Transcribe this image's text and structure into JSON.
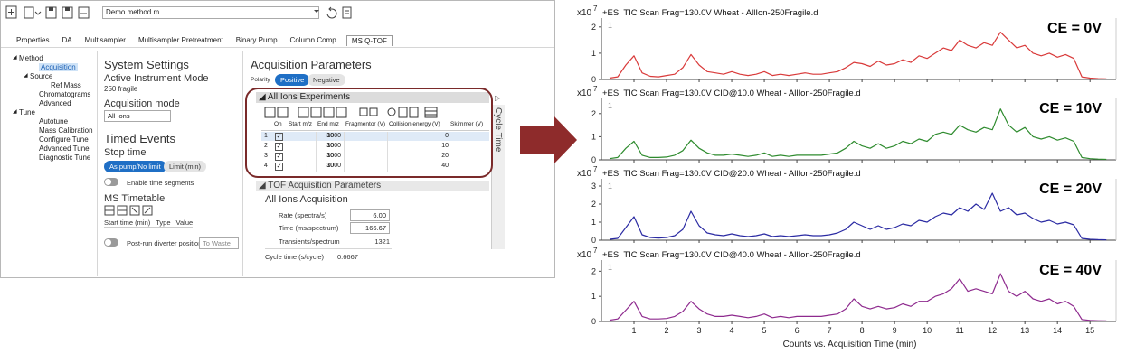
{
  "app": {
    "file_name": "Demo method.m",
    "tabs": [
      "Properties",
      "DA",
      "Multisampler",
      "Multisampler Pretreatment",
      "Binary Pump",
      "Column Comp.",
      "MS Q-TOF"
    ],
    "active_tab": "MS Q-TOF",
    "tree": [
      {
        "label": "Method",
        "children": [
          {
            "label": "Acquisition"
          },
          {
            "label": "Source",
            "children": [
              {
                "label": "Ref Mass"
              }
            ]
          },
          {
            "label": "Chromatograms"
          },
          {
            "label": "Advanced"
          }
        ]
      },
      {
        "label": "Tune",
        "children": [
          {
            "label": "Autotune"
          },
          {
            "label": "Mass Calibration"
          },
          {
            "label": "Configure Tune"
          },
          {
            "label": "Advanced Tune"
          },
          {
            "label": "Diagnostic Tune"
          }
        ]
      }
    ],
    "selected_tree_item": "Acquisition",
    "system": {
      "title": "System Settings",
      "mode_label": "Active Instrument Mode",
      "mode_value": "250 fragile",
      "acq_mode_label": "Acquisition mode",
      "acq_mode_value": "All Ions",
      "timed_events": "Timed Events",
      "stop_time": "Stop time",
      "btn_no_limit": "As pump/No limit",
      "btn_limit": "Limit (min)",
      "enable_segments": "Enable time segments",
      "timetable": "MS Timetable",
      "timetable_headers": [
        "Start time (min)",
        "Type",
        "Value"
      ],
      "post_run": "Post-run diverter position",
      "post_run_value": "To Waste"
    },
    "acquisition": {
      "title": "Acquisition Parameters",
      "polarity": "Polarity",
      "positive": "Positive",
      "negative": "Negative",
      "experiments_title": "All Ions Experiments",
      "headers": [
        "On",
        "Start m/z",
        "End m/z",
        "Fragmentor (V)",
        "Collision energy (V)",
        "Skimmer (V)"
      ],
      "rows": [
        {
          "index": 1,
          "start": 30,
          "end": 1000,
          "ce": 0
        },
        {
          "index": 2,
          "start": 30,
          "end": 1000,
          "ce": 10
        },
        {
          "index": 3,
          "start": 30,
          "end": 1000,
          "ce": 20
        },
        {
          "index": 4,
          "start": 30,
          "end": 1000,
          "ce": 40
        }
      ],
      "cycle_time_tab": "Cycle Time",
      "tof_title": "TOF Acquisition Parameters",
      "tof_mode": "All Ions Acquisition",
      "rate_label": "Rate (spectra/s)",
      "rate": "6.00",
      "time_label": "Time (ms/spectrum)",
      "time": "166.67",
      "transients_label": "Transients/spectrum",
      "transients": 1321,
      "cycle_label": "Cycle time (s/cycle)",
      "cycle": "0.6667"
    }
  },
  "chart_data": [
    {
      "type": "line",
      "title": "+ESI TIC Scan Frag=130.0V Wheat - AllIon-250Fragile.d",
      "annotation": "CE = 0V",
      "panel_number": "1",
      "y_multiplier": "x10",
      "y_exponent": "7",
      "color": "#d93a3a",
      "x": [
        0.25,
        0.5,
        0.75,
        1.0,
        1.25,
        1.5,
        1.75,
        2.0,
        2.25,
        2.5,
        2.75,
        3.0,
        3.25,
        3.5,
        3.75,
        4.0,
        4.25,
        4.5,
        4.75,
        5.0,
        5.25,
        5.5,
        5.75,
        6.0,
        6.25,
        6.5,
        6.75,
        7.0,
        7.25,
        7.5,
        7.75,
        8.0,
        8.25,
        8.5,
        8.75,
        9.0,
        9.25,
        9.5,
        9.75,
        10.0,
        10.25,
        10.5,
        10.75,
        11.0,
        11.25,
        11.5,
        11.75,
        12.0,
        12.25,
        12.5,
        12.75,
        13.0,
        13.25,
        13.5,
        13.75,
        14.0,
        14.25,
        14.5,
        14.75,
        15.0,
        15.25,
        15.5
      ],
      "values": [
        0.05,
        0.1,
        0.55,
        0.9,
        0.25,
        0.12,
        0.1,
        0.15,
        0.2,
        0.45,
        0.95,
        0.55,
        0.3,
        0.25,
        0.2,
        0.3,
        0.2,
        0.15,
        0.2,
        0.3,
        0.15,
        0.2,
        0.15,
        0.2,
        0.25,
        0.2,
        0.2,
        0.25,
        0.3,
        0.45,
        0.65,
        0.6,
        0.5,
        0.7,
        0.55,
        0.6,
        0.75,
        0.65,
        0.9,
        0.8,
        1.0,
        1.2,
        1.1,
        1.5,
        1.3,
        1.2,
        1.4,
        1.3,
        1.8,
        1.5,
        1.2,
        1.3,
        1.0,
        0.9,
        1.0,
        0.85,
        0.95,
        0.8,
        0.1,
        0.05,
        0.03,
        0.02
      ],
      "xlim": [
        0,
        15.8
      ],
      "xticks": [
        1,
        2,
        3,
        4,
        5,
        6,
        7,
        8,
        9,
        10,
        11,
        12,
        13,
        14,
        15
      ],
      "ylim": [
        0,
        2.2
      ],
      "yticks": [
        0,
        1,
        2
      ]
    },
    {
      "type": "line",
      "title": "+ESI TIC Scan Frag=130.0V CID@10.0 Wheat - AllIon-250Fragile.d",
      "annotation": "CE = 10V",
      "panel_number": "1",
      "y_multiplier": "x10",
      "y_exponent": "7",
      "color": "#2e8b2e",
      "x": [
        0.25,
        0.5,
        0.75,
        1.0,
        1.25,
        1.5,
        1.75,
        2.0,
        2.25,
        2.5,
        2.75,
        3.0,
        3.25,
        3.5,
        3.75,
        4.0,
        4.25,
        4.5,
        4.75,
        5.0,
        5.25,
        5.5,
        5.75,
        6.0,
        6.25,
        6.5,
        6.75,
        7.0,
        7.25,
        7.5,
        7.75,
        8.0,
        8.25,
        8.5,
        8.75,
        9.0,
        9.25,
        9.5,
        9.75,
        10.0,
        10.25,
        10.5,
        10.75,
        11.0,
        11.25,
        11.5,
        11.75,
        12.0,
        12.25,
        12.5,
        12.75,
        13.0,
        13.25,
        13.5,
        13.75,
        14.0,
        14.25,
        14.5,
        14.75,
        15.0,
        15.25,
        15.5
      ],
      "values": [
        0.05,
        0.1,
        0.5,
        0.8,
        0.2,
        0.1,
        0.1,
        0.12,
        0.2,
        0.4,
        0.85,
        0.5,
        0.3,
        0.2,
        0.2,
        0.25,
        0.2,
        0.15,
        0.2,
        0.3,
        0.15,
        0.2,
        0.15,
        0.2,
        0.2,
        0.2,
        0.2,
        0.25,
        0.3,
        0.5,
        0.8,
        0.6,
        0.5,
        0.7,
        0.5,
        0.6,
        0.8,
        0.7,
        0.9,
        0.8,
        1.1,
        1.2,
        1.1,
        1.5,
        1.3,
        1.2,
        1.4,
        1.3,
        2.2,
        1.5,
        1.2,
        1.4,
        1.0,
        0.9,
        1.0,
        0.85,
        0.95,
        0.8,
        0.1,
        0.05,
        0.03,
        0.02
      ],
      "xlim": [
        0,
        15.8
      ],
      "xticks": [
        1,
        2,
        3,
        4,
        5,
        6,
        7,
        8,
        9,
        10,
        11,
        12,
        13,
        14,
        15
      ],
      "ylim": [
        0,
        2.5
      ],
      "yticks": [
        0,
        1,
        2
      ]
    },
    {
      "type": "line",
      "title": "+ESI TIC Scan Frag=130.0V CID@20.0 Wheat - AllIon-250Fragile.d",
      "annotation": "CE = 20V",
      "panel_number": "1",
      "y_multiplier": "x10",
      "y_exponent": "7",
      "color": "#2b2ba3",
      "x": [
        0.25,
        0.5,
        0.75,
        1.0,
        1.25,
        1.5,
        1.75,
        2.0,
        2.25,
        2.5,
        2.75,
        3.0,
        3.25,
        3.5,
        3.75,
        4.0,
        4.25,
        4.5,
        4.75,
        5.0,
        5.25,
        5.5,
        5.75,
        6.0,
        6.25,
        6.5,
        6.75,
        7.0,
        7.25,
        7.5,
        7.75,
        8.0,
        8.25,
        8.5,
        8.75,
        9.0,
        9.25,
        9.5,
        9.75,
        10.0,
        10.25,
        10.5,
        10.75,
        11.0,
        11.25,
        11.5,
        11.75,
        12.0,
        12.25,
        12.5,
        12.75,
        13.0,
        13.25,
        13.5,
        13.75,
        14.0,
        14.25,
        14.5,
        14.75,
        15.0,
        15.25,
        15.5
      ],
      "values": [
        0.05,
        0.1,
        0.7,
        1.3,
        0.3,
        0.15,
        0.12,
        0.15,
        0.25,
        0.6,
        1.6,
        0.8,
        0.4,
        0.3,
        0.25,
        0.35,
        0.25,
        0.2,
        0.25,
        0.35,
        0.2,
        0.25,
        0.2,
        0.25,
        0.3,
        0.25,
        0.25,
        0.3,
        0.4,
        0.6,
        1.0,
        0.8,
        0.6,
        0.8,
        0.6,
        0.7,
        0.9,
        0.8,
        1.1,
        1.0,
        1.3,
        1.5,
        1.4,
        1.8,
        1.6,
        2.0,
        1.7,
        2.6,
        1.6,
        1.8,
        1.4,
        1.5,
        1.2,
        1.0,
        1.1,
        0.9,
        1.0,
        0.85,
        0.1,
        0.05,
        0.03,
        0.02
      ],
      "xlim": [
        0,
        15.8
      ],
      "xticks": [
        1,
        2,
        3,
        4,
        5,
        6,
        7,
        8,
        9,
        10,
        11,
        12,
        13,
        14,
        15
      ],
      "ylim": [
        0,
        3.2
      ],
      "yticks": [
        0,
        1,
        2,
        3
      ]
    },
    {
      "type": "line",
      "title": "+ESI TIC Scan Frag=130.0V CID@40.0 Wheat - AllIon-250Fragile.d",
      "annotation": "CE = 40V",
      "panel_number": "1",
      "y_multiplier": "x10",
      "y_exponent": "7",
      "color": "#8e2a8e",
      "x": [
        0.25,
        0.5,
        0.75,
        1.0,
        1.25,
        1.5,
        1.75,
        2.0,
        2.25,
        2.5,
        2.75,
        3.0,
        3.25,
        3.5,
        3.75,
        4.0,
        4.25,
        4.5,
        4.75,
        5.0,
        5.25,
        5.5,
        5.75,
        6.0,
        6.25,
        6.5,
        6.75,
        7.0,
        7.25,
        7.5,
        7.75,
        8.0,
        8.25,
        8.5,
        8.75,
        9.0,
        9.25,
        9.5,
        9.75,
        10.0,
        10.25,
        10.5,
        10.75,
        11.0,
        11.25,
        11.5,
        11.75,
        12.0,
        12.25,
        12.5,
        12.75,
        13.0,
        13.25,
        13.5,
        13.75,
        14.0,
        14.25,
        14.5,
        14.75,
        15.0,
        15.25,
        15.5
      ],
      "values": [
        0.05,
        0.1,
        0.45,
        0.8,
        0.2,
        0.1,
        0.1,
        0.12,
        0.2,
        0.4,
        0.8,
        0.5,
        0.3,
        0.2,
        0.2,
        0.25,
        0.2,
        0.15,
        0.2,
        0.3,
        0.15,
        0.2,
        0.15,
        0.2,
        0.2,
        0.2,
        0.2,
        0.25,
        0.3,
        0.5,
        0.9,
        0.6,
        0.5,
        0.6,
        0.5,
        0.55,
        0.7,
        0.6,
        0.8,
        0.8,
        1.0,
        1.1,
        1.3,
        1.7,
        1.2,
        1.3,
        1.2,
        1.1,
        1.9,
        1.2,
        1.0,
        1.2,
        0.9,
        0.8,
        0.9,
        0.7,
        0.8,
        0.6,
        0.08,
        0.04,
        0.03,
        0.02
      ],
      "xlim": [
        0,
        15.8
      ],
      "xticks": [
        1,
        2,
        3,
        4,
        5,
        6,
        7,
        8,
        9,
        10,
        11,
        12,
        13,
        14,
        15
      ],
      "ylim": [
        0,
        2.3
      ],
      "yticks": [
        0,
        1,
        2
      ],
      "xlabel": "Counts vs. Acquisition Time (min)"
    }
  ]
}
